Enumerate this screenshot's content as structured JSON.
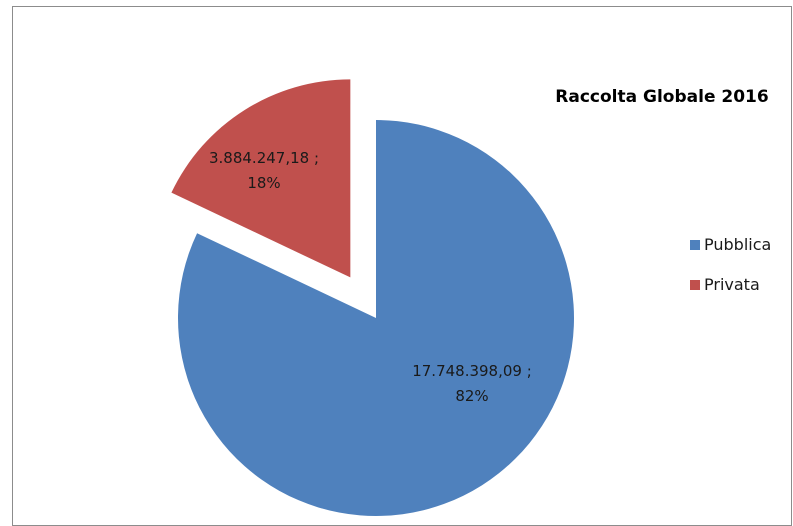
{
  "chart_data": {
    "type": "pie",
    "title": "Raccolta Globale 2016",
    "categories": [
      "Pubblica",
      "Privata"
    ],
    "values": [
      17748398.09,
      3884247.18
    ],
    "percentages": [
      82,
      18
    ],
    "data_labels": [
      {
        "line1": "17.748.398,09 ;",
        "line2": "82%"
      },
      {
        "line1": "3.884.247,18 ;",
        "line2": "18%"
      }
    ],
    "colors": [
      "#4f81bd",
      "#c0504d"
    ],
    "exploded": [
      false,
      true
    ],
    "legend": {
      "position": "right",
      "entries": [
        "Pubblica",
        "Privata"
      ]
    }
  }
}
